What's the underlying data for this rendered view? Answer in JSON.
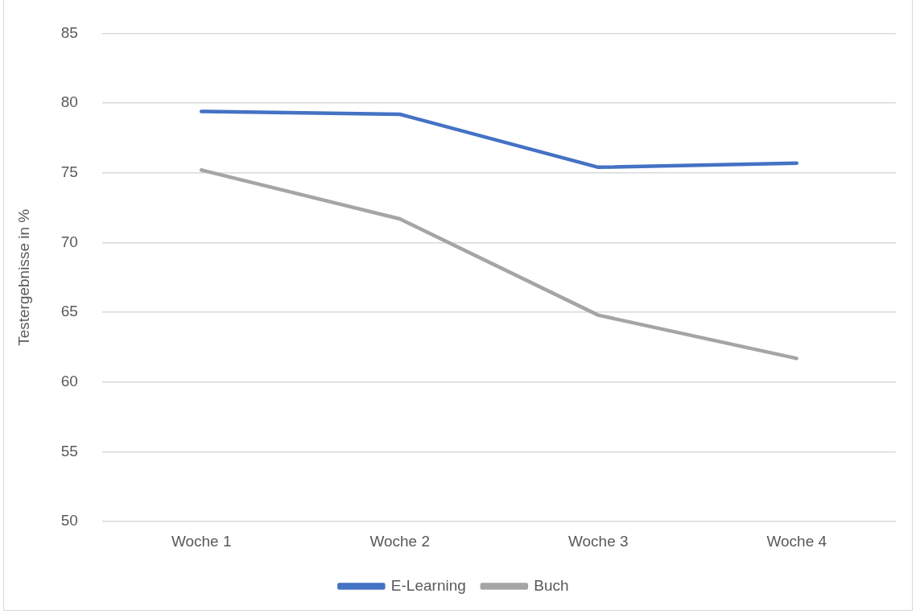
{
  "chart_data": {
    "type": "line",
    "ylabel": "Testergebnisse in %",
    "categories": [
      "Woche 1",
      "Woche 2",
      "Woche 3",
      "Woche 4"
    ],
    "series": [
      {
        "name": "E-Learning",
        "color": "#4472c4",
        "values": [
          79.4,
          79.2,
          75.4,
          75.7
        ]
      },
      {
        "name": "Buch",
        "color": "#a5a5a5",
        "values": [
          75.2,
          71.7,
          64.8,
          61.7
        ]
      }
    ],
    "ylim": [
      50,
      85
    ],
    "yticks": [
      50,
      55,
      60,
      65,
      70,
      75,
      80,
      85
    ],
    "grid": "y",
    "legend": "bottom",
    "marker": "none",
    "line_style": "solid"
  }
}
